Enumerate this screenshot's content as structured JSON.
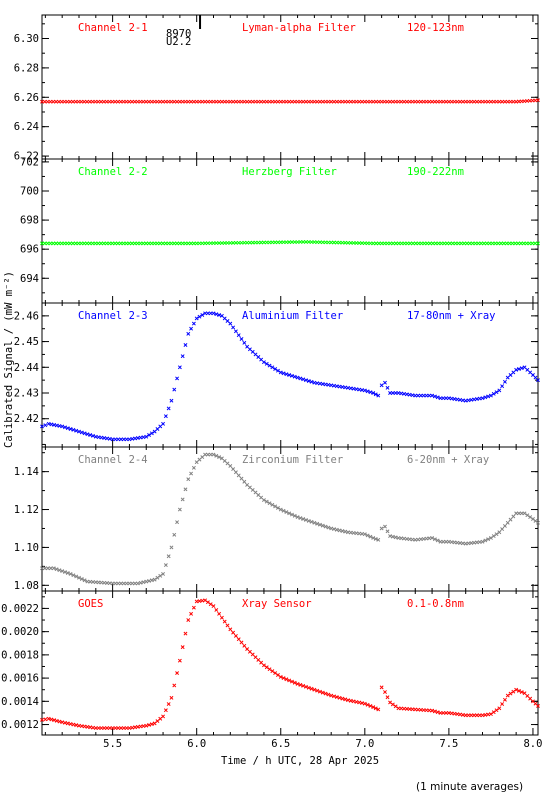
{
  "chart_data": {
    "type": "scatter",
    "xlabel": "Time / h UTC, 28 Apr 2025",
    "ylabel": "Calibrated Signal / (mW m⁻²)",
    "x_ticks": [
      "5.5",
      "6.0",
      "6.5",
      "7.0",
      "7.5",
      "8.0"
    ],
    "xlim": [
      5.08,
      8.03
    ],
    "footnote": "(1 minute averages)",
    "panels": [
      {
        "channel": "Channel 2-1",
        "filter": "Lyman-alpha Filter",
        "band": "120-123nm",
        "color": "#ff0000",
        "ylim": [
          6.218,
          6.316
        ],
        "y_ticks": [
          6.22,
          6.24,
          6.26,
          6.28,
          6.3
        ],
        "tick_decimals": 2,
        "annotation": [
          "8970",
          "U2.2"
        ],
        "marker_x": 6.02,
        "series": [
          [
            5.08,
            6.257
          ],
          [
            6.0,
            6.257
          ],
          [
            7.0,
            6.257
          ],
          [
            7.9,
            6.257
          ],
          [
            8.03,
            6.258
          ]
        ]
      },
      {
        "channel": "Channel 2-2",
        "filter": "Herzberg Filter",
        "band": "190-222nm",
        "color": "#00ff00",
        "ylim": [
          692.3,
          702.2
        ],
        "y_ticks": [
          694,
          696,
          698,
          700,
          702
        ],
        "tick_decimals": 0,
        "series": [
          [
            5.08,
            696.4
          ],
          [
            6.0,
            696.4
          ],
          [
            6.65,
            696.5
          ],
          [
            7.05,
            696.4
          ],
          [
            8.03,
            696.4
          ]
        ]
      },
      {
        "channel": "Channel 2-3",
        "filter": "Aluminium Filter",
        "band": "17-80nm + Xray",
        "color": "#0000ff",
        "ylim": [
          2.409,
          2.465
        ],
        "y_ticks": [
          2.42,
          2.43,
          2.44,
          2.45,
          2.46
        ],
        "tick_decimals": 2,
        "series": [
          [
            5.08,
            2.417
          ],
          [
            5.12,
            2.418
          ],
          [
            5.2,
            2.417
          ],
          [
            5.3,
            2.415
          ],
          [
            5.4,
            2.413
          ],
          [
            5.5,
            2.412
          ],
          [
            5.6,
            2.412
          ],
          [
            5.7,
            2.413
          ],
          [
            5.75,
            2.415
          ],
          [
            5.8,
            2.418
          ],
          [
            5.85,
            2.427
          ],
          [
            5.9,
            2.44
          ],
          [
            5.95,
            2.453
          ],
          [
            6.0,
            2.459
          ],
          [
            6.05,
            2.461
          ],
          [
            6.1,
            2.461
          ],
          [
            6.15,
            2.46
          ],
          [
            6.2,
            2.457
          ],
          [
            6.3,
            2.448
          ],
          [
            6.4,
            2.442
          ],
          [
            6.5,
            2.438
          ],
          [
            6.6,
            2.436
          ],
          [
            6.65,
            2.435
          ],
          [
            6.7,
            2.434
          ],
          [
            6.8,
            2.433
          ],
          [
            6.9,
            2.432
          ],
          [
            7.0,
            2.431
          ],
          [
            7.05,
            2.43
          ],
          [
            7.08,
            2.429
          ],
          [
            7.1,
            2.433
          ],
          [
            7.12,
            2.434
          ],
          [
            7.15,
            2.43
          ],
          [
            7.2,
            2.43
          ],
          [
            7.3,
            2.429
          ],
          [
            7.4,
            2.429
          ],
          [
            7.45,
            2.428
          ],
          [
            7.5,
            2.428
          ],
          [
            7.6,
            2.427
          ],
          [
            7.7,
            2.428
          ],
          [
            7.75,
            2.429
          ],
          [
            7.8,
            2.431
          ],
          [
            7.85,
            2.436
          ],
          [
            7.9,
            2.439
          ],
          [
            7.95,
            2.44
          ],
          [
            8.0,
            2.437
          ],
          [
            8.03,
            2.435
          ]
        ]
      },
      {
        "channel": "Channel 2-4",
        "filter": "Zirconium Filter",
        "band": "6-20nm + Xray",
        "color": "#808080",
        "ylim": [
          1.077,
          1.153
        ],
        "y_ticks": [
          1.08,
          1.1,
          1.12,
          1.14
        ],
        "tick_decimals": 2,
        "series": [
          [
            5.08,
            1.089
          ],
          [
            5.15,
            1.089
          ],
          [
            5.25,
            1.086
          ],
          [
            5.35,
            1.082
          ],
          [
            5.5,
            1.081
          ],
          [
            5.65,
            1.081
          ],
          [
            5.75,
            1.083
          ],
          [
            5.8,
            1.086
          ],
          [
            5.85,
            1.1
          ],
          [
            5.9,
            1.12
          ],
          [
            5.95,
            1.136
          ],
          [
            6.0,
            1.145
          ],
          [
            6.05,
            1.149
          ],
          [
            6.1,
            1.149
          ],
          [
            6.15,
            1.147
          ],
          [
            6.2,
            1.143
          ],
          [
            6.3,
            1.133
          ],
          [
            6.4,
            1.125
          ],
          [
            6.5,
            1.12
          ],
          [
            6.6,
            1.116
          ],
          [
            6.7,
            1.113
          ],
          [
            6.8,
            1.11
          ],
          [
            6.9,
            1.108
          ],
          [
            7.0,
            1.107
          ],
          [
            7.05,
            1.105
          ],
          [
            7.08,
            1.104
          ],
          [
            7.1,
            1.11
          ],
          [
            7.12,
            1.111
          ],
          [
            7.15,
            1.106
          ],
          [
            7.2,
            1.105
          ],
          [
            7.3,
            1.104
          ],
          [
            7.4,
            1.105
          ],
          [
            7.45,
            1.103
          ],
          [
            7.5,
            1.103
          ],
          [
            7.6,
            1.102
          ],
          [
            7.7,
            1.103
          ],
          [
            7.75,
            1.105
          ],
          [
            7.8,
            1.108
          ],
          [
            7.85,
            1.113
          ],
          [
            7.9,
            1.118
          ],
          [
            7.95,
            1.118
          ],
          [
            8.0,
            1.115
          ],
          [
            8.03,
            1.113
          ]
        ]
      },
      {
        "channel": "GOES",
        "filter": "Xray Sensor",
        "band": "0.1-0.8nm",
        "color": "#ff0000",
        "ylim": [
          0.00111,
          0.00235
        ],
        "y_ticks": [
          0.0012,
          0.0014,
          0.0016,
          0.0018,
          0.002,
          0.0022
        ],
        "tick_decimals": 4,
        "series": [
          [
            5.08,
            0.00124
          ],
          [
            5.12,
            0.00125
          ],
          [
            5.2,
            0.00122
          ],
          [
            5.3,
            0.00119
          ],
          [
            5.4,
            0.00117
          ],
          [
            5.5,
            0.00117
          ],
          [
            5.6,
            0.00117
          ],
          [
            5.7,
            0.00119
          ],
          [
            5.75,
            0.00121
          ],
          [
            5.8,
            0.00127
          ],
          [
            5.85,
            0.00143
          ],
          [
            5.9,
            0.00175
          ],
          [
            5.95,
            0.0021
          ],
          [
            6.0,
            0.00226
          ],
          [
            6.05,
            0.00227
          ],
          [
            6.1,
            0.00222
          ],
          [
            6.15,
            0.00212
          ],
          [
            6.2,
            0.00202
          ],
          [
            6.3,
            0.00185
          ],
          [
            6.4,
            0.00171
          ],
          [
            6.5,
            0.00161
          ],
          [
            6.6,
            0.00155
          ],
          [
            6.7,
            0.0015
          ],
          [
            6.8,
            0.00145
          ],
          [
            6.9,
            0.00141
          ],
          [
            7.0,
            0.00138
          ],
          [
            7.05,
            0.00135
          ],
          [
            7.08,
            0.00133
          ],
          [
            7.1,
            0.00152
          ],
          [
            7.12,
            0.00148
          ],
          [
            7.15,
            0.00139
          ],
          [
            7.2,
            0.00134
          ],
          [
            7.3,
            0.00133
          ],
          [
            7.4,
            0.00132
          ],
          [
            7.45,
            0.0013
          ],
          [
            7.5,
            0.0013
          ],
          [
            7.6,
            0.00128
          ],
          [
            7.7,
            0.00128
          ],
          [
            7.75,
            0.00129
          ],
          [
            7.8,
            0.00134
          ],
          [
            7.85,
            0.00145
          ],
          [
            7.9,
            0.0015
          ],
          [
            7.95,
            0.00147
          ],
          [
            8.0,
            0.0014
          ],
          [
            8.03,
            0.00136
          ]
        ]
      }
    ]
  }
}
